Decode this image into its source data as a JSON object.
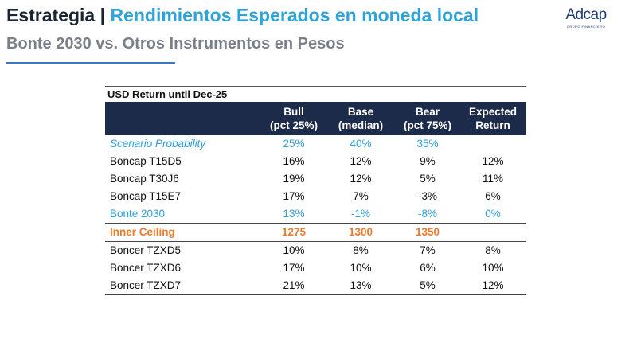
{
  "header": {
    "title_left": "Estrategia",
    "title_sep": "|",
    "title_right": "Rendimientos Esperados en moneda local",
    "subtitle": "Bonte 2030 vs. Otros Instrumentos en Pesos"
  },
  "logo": {
    "name": "Adcap",
    "tagline": "GRUPO FINANCIERO"
  },
  "colors": {
    "title_blue": "#2ea3d8",
    "header_navy": "#1d2b4a",
    "highlight_blue": "#2e9fd8",
    "highlight_orange": "#f07a28"
  },
  "table": {
    "caption": "USD Return until Dec-25",
    "columns": [
      {
        "line1": "Bull",
        "line2": "(pct 25%)"
      },
      {
        "line1": "Base",
        "line2": "(median)"
      },
      {
        "line1": "Bear",
        "line2": "(pct 75%)"
      },
      {
        "line1": "Expected",
        "line2": "Return"
      }
    ],
    "rows": [
      {
        "label": "Scenario Probability",
        "values": [
          "25%",
          "40%",
          "35%",
          ""
        ]
      },
      {
        "label": "Boncap T15D5",
        "values": [
          "16%",
          "12%",
          "9%",
          "12%"
        ]
      },
      {
        "label": "Boncap T30J6",
        "values": [
          "19%",
          "12%",
          "5%",
          "11%"
        ]
      },
      {
        "label": "Boncap T15E7",
        "values": [
          "17%",
          "7%",
          "-3%",
          "6%"
        ]
      },
      {
        "label": "Bonte 2030",
        "values": [
          "13%",
          "-1%",
          "-8%",
          "0%"
        ]
      },
      {
        "label": "Inner Ceiling",
        "values": [
          "1275",
          "1300",
          "1350",
          ""
        ]
      },
      {
        "label": "Boncer TZXD5",
        "values": [
          "10%",
          "8%",
          "7%",
          "8%"
        ]
      },
      {
        "label": "Boncer TZXD6",
        "values": [
          "17%",
          "10%",
          "6%",
          "10%"
        ]
      },
      {
        "label": "Boncer TZXD7",
        "values": [
          "21%",
          "13%",
          "5%",
          "12%"
        ]
      }
    ]
  }
}
